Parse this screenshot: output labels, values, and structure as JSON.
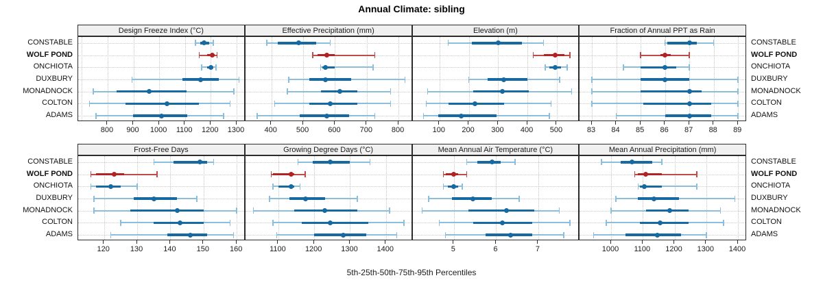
{
  "chart_data": {
    "type": "dotplot-intervals",
    "title": "Annual Climate: sibling",
    "xlabel": "5th-25th-50th-75th-95th Percentiles",
    "percentile_levels": [
      "5th",
      "25th",
      "50th",
      "75th",
      "95th"
    ],
    "stations": [
      "CONSTABLE",
      "WOLF POND",
      "ONCHIOTA",
      "DUXBURY",
      "MONADNOCK",
      "COLTON",
      "ADAMS"
    ],
    "highlight_station": "WOLF POND",
    "layout": {
      "rows": 2,
      "cols": 4,
      "grid": "dotted",
      "station_labels": "both-sides"
    },
    "colors": {
      "series": "#1769A1",
      "series_light": "#8BBDDC",
      "highlight": "#B22222",
      "highlight_light": "#BE4B48",
      "strip_bg": "#F0F0F0",
      "border": "#2B2B2B",
      "grid": "#C9C9C9",
      "text": "#1A1A1A"
    },
    "panels": [
      {
        "title": "Design Freeze Index (°C)",
        "xlim": [
          686,
          1334
        ],
        "ticks": [
          800,
          900,
          1000,
          1100,
          1200,
          1300
        ],
        "grid_extra": [
          700
        ],
        "values": [
          [
            1140,
            1160,
            1175,
            1195,
            1210
          ],
          [
            1155,
            1185,
            1205,
            1215,
            1225
          ],
          [
            1165,
            1185,
            1200,
            1210,
            1220
          ],
          [
            895,
            1090,
            1160,
            1230,
            1310
          ],
          [
            745,
            835,
            960,
            1105,
            1290
          ],
          [
            730,
            870,
            1030,
            1155,
            1275
          ],
          [
            755,
            900,
            1010,
            1110,
            1250
          ]
        ]
      },
      {
        "title": "Effective Precipitation (mm)",
        "xlim": [
          318,
          844
        ],
        "ticks": [
          400,
          500,
          600,
          700,
          800
        ],
        "grid_extra": [],
        "values": [
          [
            385,
            420,
            485,
            540,
            585
          ],
          [
            530,
            545,
            575,
            600,
            725
          ],
          [
            555,
            560,
            570,
            600,
            720
          ],
          [
            455,
            520,
            570,
            650,
            820
          ],
          [
            450,
            555,
            615,
            670,
            775
          ],
          [
            410,
            520,
            585,
            670,
            775
          ],
          [
            355,
            490,
            575,
            645,
            725
          ]
        ]
      },
      {
        "title": "Elevation (m)",
        "xlim": [
          8,
          578
        ],
        "ticks": [
          100,
          200,
          300,
          400,
          500
        ],
        "grid_extra": [],
        "values": [
          [
            130,
            210,
            300,
            380,
            455
          ],
          [
            420,
            455,
            495,
            525,
            545
          ],
          [
            460,
            475,
            495,
            515,
            535
          ],
          [
            200,
            265,
            320,
            400,
            510
          ],
          [
            60,
            215,
            315,
            405,
            550
          ],
          [
            55,
            130,
            220,
            320,
            480
          ],
          [
            45,
            95,
            175,
            295,
            475
          ]
        ]
      },
      {
        "title": "Fraction of Annual PPT as Rain",
        "xlim": [
          82.5,
          89.36
        ],
        "ticks": [
          83,
          84,
          85,
          86,
          87,
          88,
          89
        ],
        "grid_extra": [],
        "values": [
          [
            86,
            86.1,
            87,
            87.3,
            88
          ],
          [
            85,
            85.8,
            86,
            86.25,
            87
          ],
          [
            84.3,
            85,
            86,
            86.45,
            87
          ],
          [
            83,
            85,
            86,
            87,
            89
          ],
          [
            83,
            85,
            87,
            87.5,
            89
          ],
          [
            83,
            85.1,
            87,
            87.9,
            89
          ],
          [
            84,
            86,
            87,
            87.9,
            89
          ]
        ]
      },
      {
        "title": "Frost-Free Days",
        "xlim": [
          112.2,
          162.6
        ],
        "ticks": [
          120,
          130,
          140,
          150,
          160
        ],
        "grid_extra": [],
        "values": [
          [
            135,
            141,
            149,
            151,
            153
          ],
          [
            116,
            117.5,
            123,
            126,
            136
          ],
          [
            116,
            117.5,
            122,
            125,
            130
          ],
          [
            117,
            129,
            135,
            142,
            148
          ],
          [
            117,
            128,
            142,
            150,
            160
          ],
          [
            125,
            135,
            143,
            150,
            158
          ],
          [
            122,
            139,
            146,
            151,
            159
          ]
        ]
      },
      {
        "title": "Growing Degree Days (°C)",
        "xlim": [
          1008,
          1474
        ],
        "ticks": [
          1100,
          1200,
          1300,
          1400
        ],
        "grid_extra": [],
        "values": [
          [
            1155,
            1195,
            1245,
            1300,
            1355
          ],
          [
            1080,
            1085,
            1135,
            1145,
            1175
          ],
          [
            1085,
            1100,
            1135,
            1145,
            1160
          ],
          [
            1075,
            1130,
            1175,
            1230,
            1320
          ],
          [
            1030,
            1145,
            1230,
            1320,
            1410
          ],
          [
            1085,
            1165,
            1245,
            1350,
            1450
          ],
          [
            1095,
            1200,
            1280,
            1345,
            1430
          ]
        ]
      },
      {
        "title": "Mean Annual Air Temperature (°C)",
        "xlim": [
          4.02,
          7.98
        ],
        "ticks": [
          5,
          6,
          7
        ],
        "grid_extra": [],
        "values": [
          [
            5.3,
            5.55,
            5.9,
            6.1,
            6.45
          ],
          [
            4.75,
            4.8,
            5.0,
            5.1,
            5.3
          ],
          [
            4.75,
            4.85,
            5.0,
            5.1,
            5.2
          ],
          [
            4.4,
            4.95,
            5.45,
            5.9,
            6.55
          ],
          [
            4.25,
            5.35,
            6.25,
            6.9,
            7.5
          ],
          [
            4.65,
            5.45,
            6.15,
            6.85,
            7.75
          ],
          [
            4.8,
            5.75,
            6.35,
            6.85,
            7.6
          ]
        ]
      },
      {
        "title": "Mean Annual Precipitation (mm)",
        "xlim": [
          901,
          1428
        ],
        "ticks": [
          1000,
          1100,
          1200,
          1300,
          1400
        ],
        "grid_extra": [],
        "values": [
          [
            970,
            1030,
            1065,
            1130,
            1160
          ],
          [
            1075,
            1085,
            1110,
            1160,
            1270
          ],
          [
            1085,
            1090,
            1105,
            1160,
            1270
          ],
          [
            1015,
            1085,
            1135,
            1215,
            1390
          ],
          [
            1000,
            1110,
            1185,
            1245,
            1345
          ],
          [
            985,
            1090,
            1155,
            1245,
            1355
          ],
          [
            945,
            1045,
            1145,
            1220,
            1300
          ]
        ]
      }
    ]
  }
}
